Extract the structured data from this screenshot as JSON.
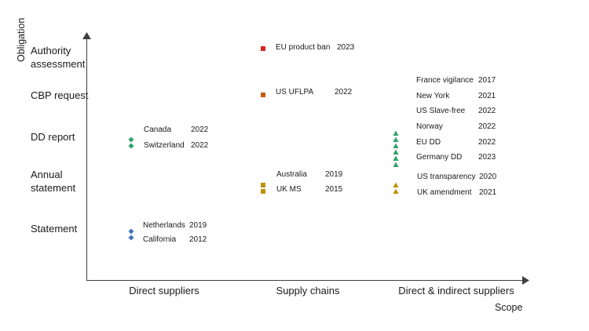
{
  "chart_data": {
    "type": "scatter",
    "title": "",
    "xlabel": "Scope",
    "ylabel": "Obligation",
    "x_categories": [
      "Direct suppliers",
      "Supply chains",
      "Direct & indirect suppliers"
    ],
    "y_categories": [
      "Statement",
      "Annual statement",
      "DD report",
      "CBP request",
      "Authority assessment"
    ],
    "legend": "none",
    "grid": false,
    "groups": [
      {
        "x": "Direct suppliers",
        "y": "DD report",
        "marker": "diamond",
        "color": "#2ea36b",
        "points": [
          {
            "label": "Canada",
            "year": "2022"
          },
          {
            "label": "Switzerland",
            "year": "2022"
          }
        ]
      },
      {
        "x": "Direct suppliers",
        "y": "Statement",
        "marker": "diamond",
        "color": "#4472c4",
        "points": [
          {
            "label": "Netherlands",
            "year": "2019"
          },
          {
            "label": "California",
            "year": "2012"
          }
        ]
      },
      {
        "x": "Supply chains",
        "y": "Authority assessment",
        "marker": "square",
        "color": "#d9231a",
        "points": [
          {
            "label": "EU product ban",
            "year": "2023"
          }
        ]
      },
      {
        "x": "Supply chains",
        "y": "CBP request",
        "marker": "square",
        "color": "#c55a11",
        "points": [
          {
            "label": "US UFLPA",
            "year": "2022"
          }
        ]
      },
      {
        "x": "Supply chains",
        "y": "Annual statement",
        "marker": "square",
        "color": "#bf9000",
        "points": [
          {
            "label": "Australia",
            "year": "2019"
          },
          {
            "label": "UK MS",
            "year": "2015"
          }
        ]
      },
      {
        "x": "Direct & indirect suppliers",
        "y": "DD report",
        "marker": "triangle",
        "color": "#2ea36b",
        "points": [
          {
            "label": "France vigilance",
            "year": "2017"
          },
          {
            "label": "New York",
            "year": "2021"
          },
          {
            "label": "US Slave-free",
            "year": "2022"
          },
          {
            "label": "Norway",
            "year": "2022"
          },
          {
            "label": "EU DD",
            "year": "2022"
          },
          {
            "label": "Germany DD",
            "year": "2023"
          }
        ]
      },
      {
        "x": "Direct & indirect suppliers",
        "y": "Annual statement",
        "marker": "triangle",
        "color": "#bf9000",
        "points": [
          {
            "label": "US transparency",
            "year": "2020"
          },
          {
            "label": "UK amendment",
            "year": "2021"
          }
        ]
      }
    ]
  }
}
